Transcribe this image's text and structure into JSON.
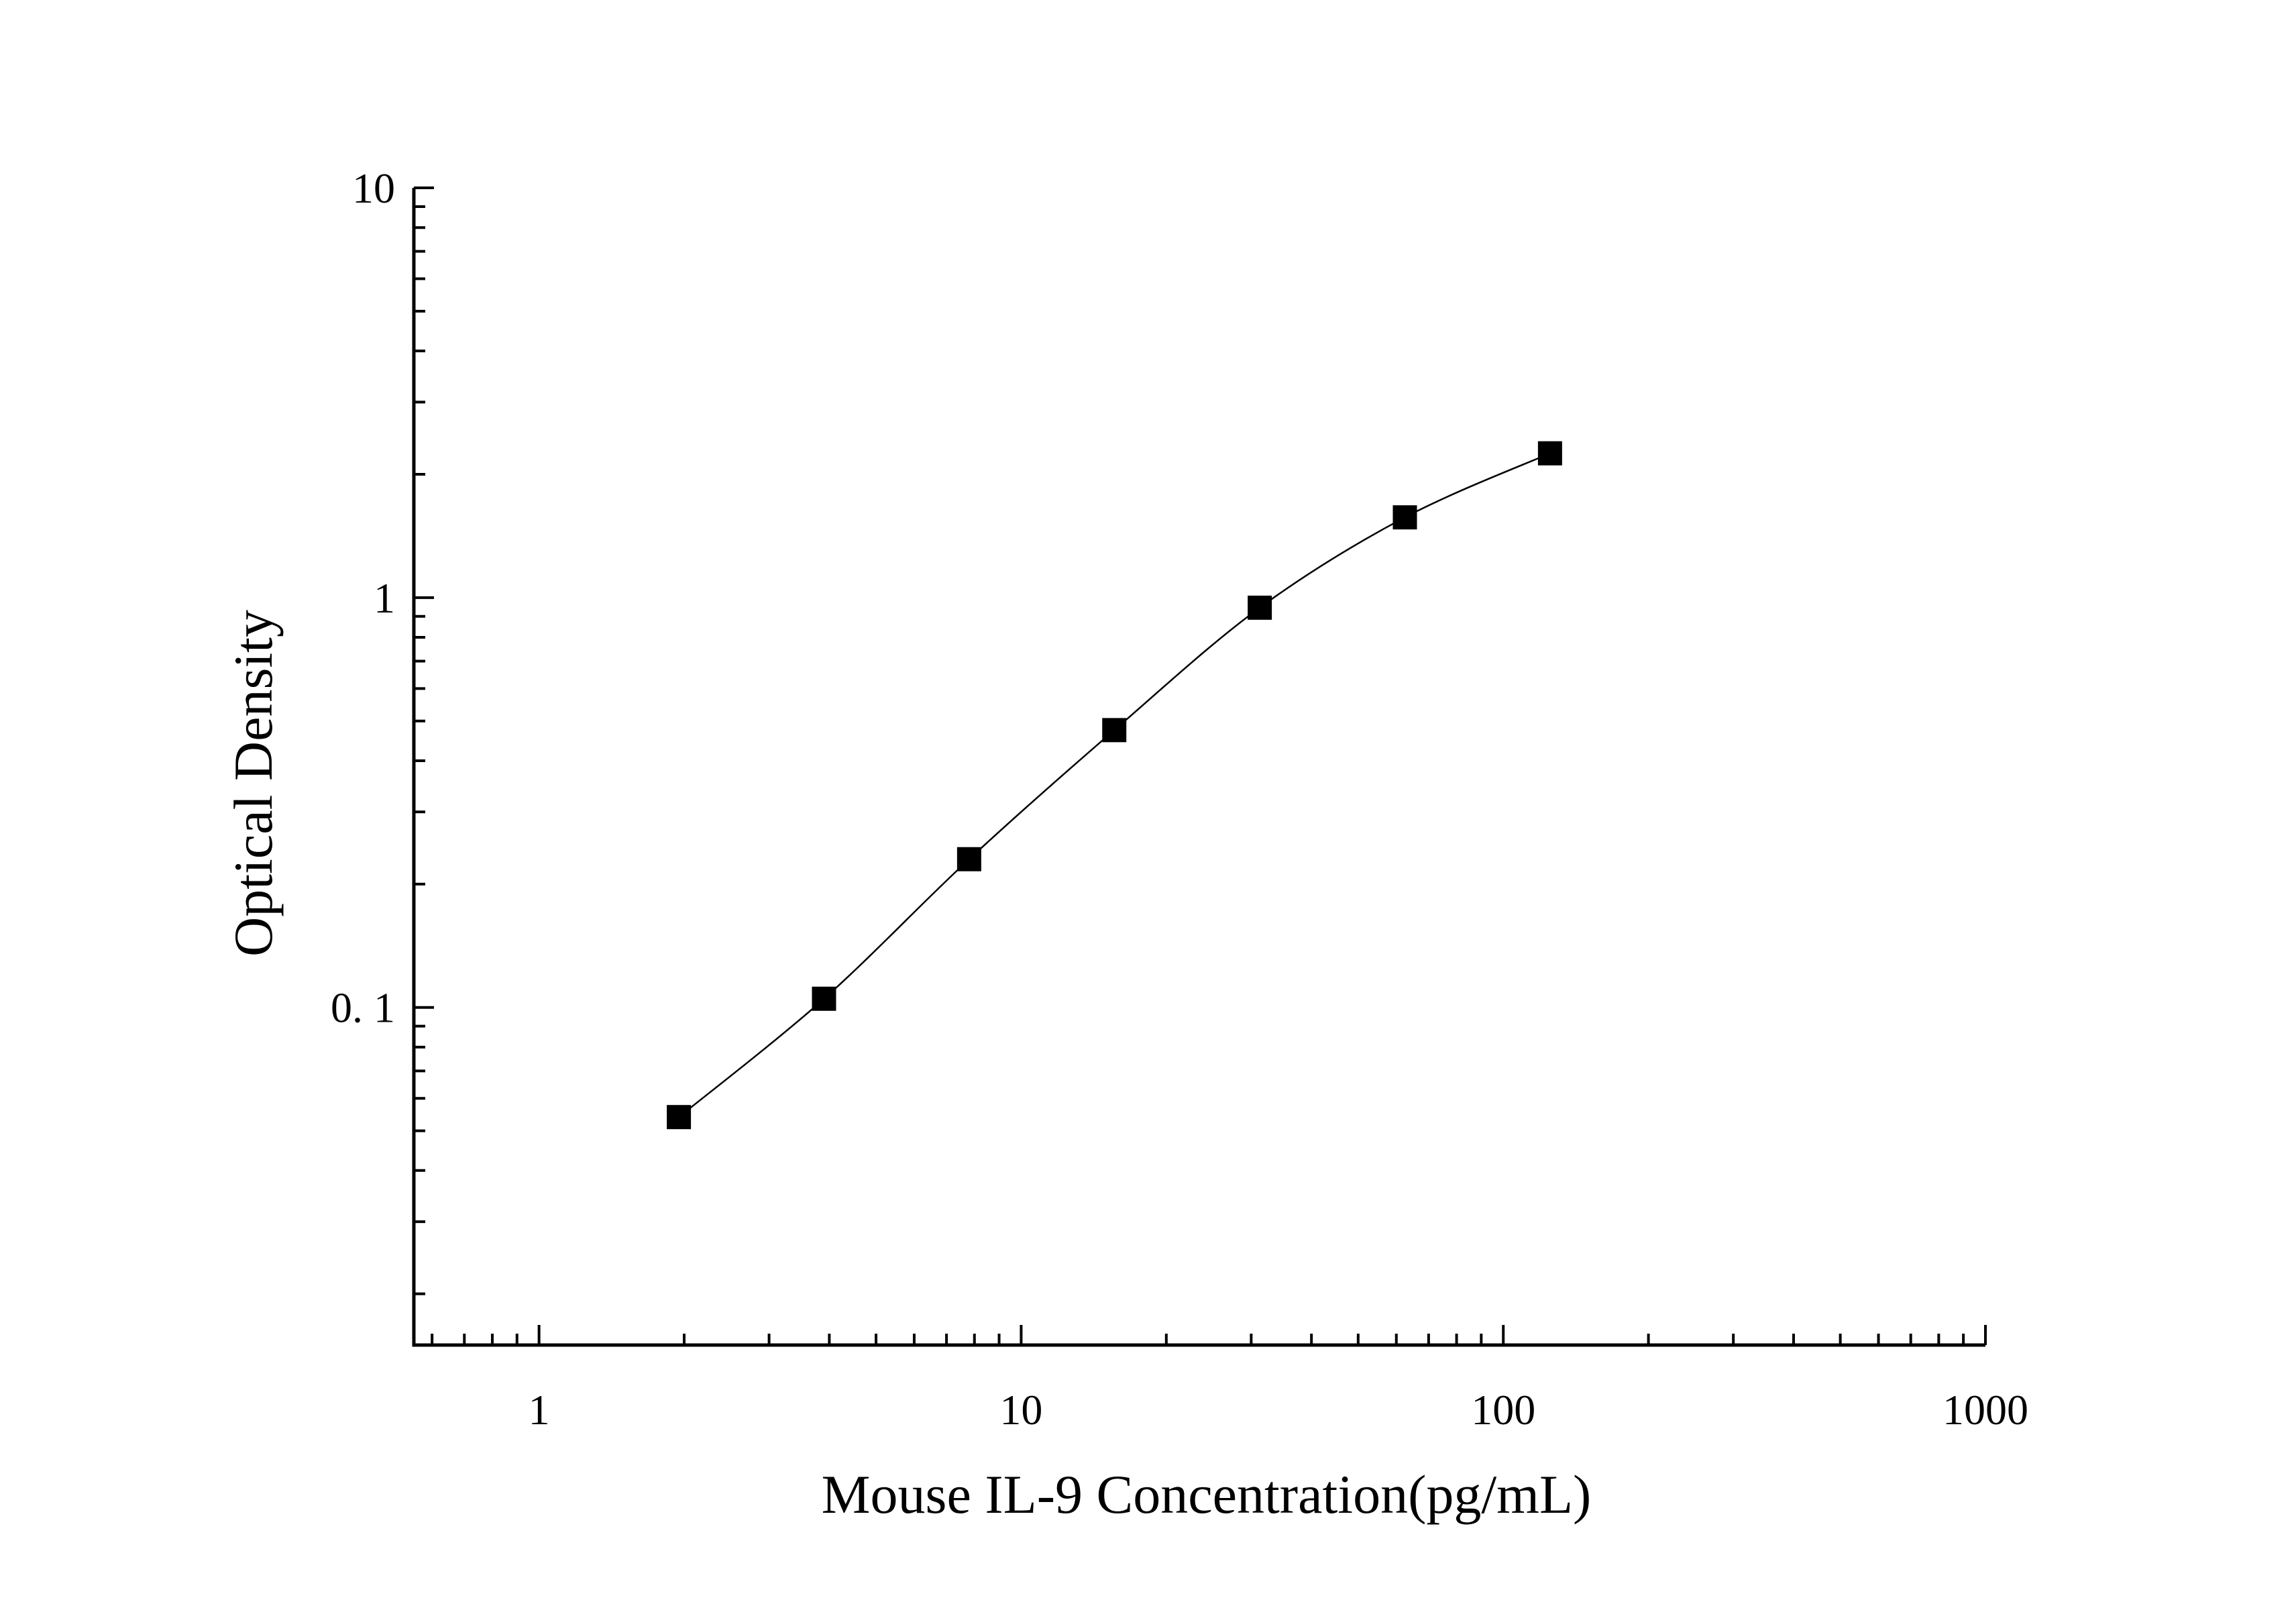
{
  "chart_data": {
    "type": "scatter",
    "title": "",
    "xlabel": "Mouse IL-9 Concentration(pg/mL)",
    "ylabel": "Optical Density",
    "x_scale": "log",
    "y_scale": "log",
    "xlim": [
      0.55,
      1000
    ],
    "ylim": [
      0.015,
      10
    ],
    "x_ticks": [
      {
        "value": 1,
        "label": "1"
      },
      {
        "value": 10,
        "label": "10"
      },
      {
        "value": 100,
        "label": "100"
      },
      {
        "value": 1000,
        "label": "1000"
      }
    ],
    "y_ticks": [
      {
        "value": 0.1,
        "label": "0. 1"
      },
      {
        "value": 1,
        "label": "1"
      },
      {
        "value": 10,
        "label": "10"
      }
    ],
    "grid": false,
    "legend": "none",
    "marker": "square",
    "series": [
      {
        "x": [
          1.95,
          3.9,
          7.8,
          15.6,
          31.25,
          62.5,
          125
        ],
        "y": [
          0.054,
          0.105,
          0.23,
          0.475,
          0.945,
          1.57,
          2.25
        ]
      }
    ],
    "fit_curve": true,
    "color": "#000000"
  }
}
